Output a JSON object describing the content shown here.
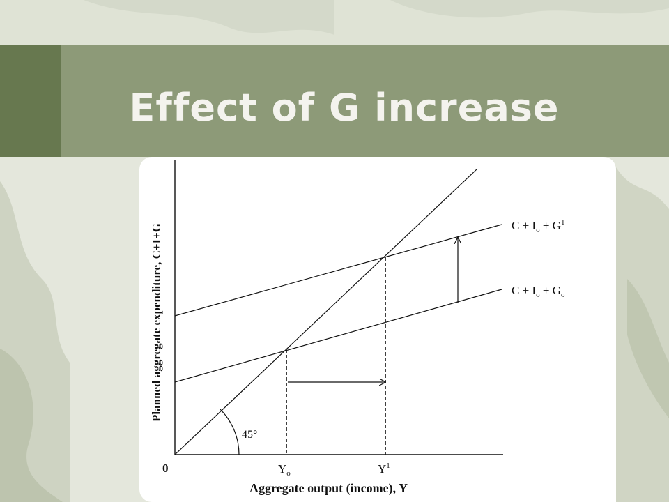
{
  "slide": {
    "title_prefix": "Effect of ",
    "title_letter": "G",
    "title_suffix": " increase"
  },
  "colors": {
    "title_band": "#8d9a78",
    "left_band": "#67784f",
    "title_text": "#f4f3ee",
    "panel": "#ffffff",
    "ink": "#111111"
  },
  "diagram": {
    "y_axis_label": "Planned aggregate expenditure, C+I+G",
    "x_axis_label": "Aggregate output (income), Y",
    "origin_label": "0",
    "angle_label": "45°",
    "line_upper": {
      "main": "C + I",
      "sub": "o",
      "mid": " + G",
      "sup": "1"
    },
    "line_lower": {
      "main": "C + I",
      "sub": "o",
      "mid": " + G",
      "sub2": "o"
    },
    "tick_y0": {
      "main": "Y",
      "sub": "o"
    },
    "tick_y1": {
      "main": "Y",
      "sup": "1"
    }
  }
}
